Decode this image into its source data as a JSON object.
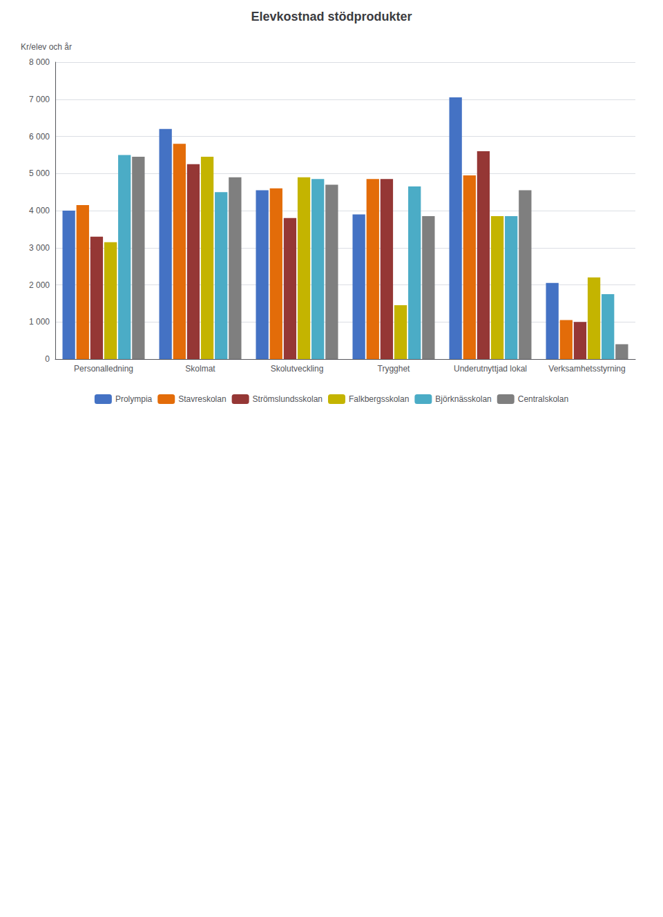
{
  "chart_data": {
    "type": "bar",
    "title": "Elevkostnad stödprodukter",
    "ylabel": "Kr/elev och år",
    "categories": [
      "Personalledning",
      "Skolmat",
      "Skolutveckling",
      "Trygghet",
      "Underutnyttjad lokal",
      "Verksamhetsstyrning"
    ],
    "series": [
      {
        "name": "Prolympia",
        "color": "#4472C4",
        "values": [
          4000,
          6200,
          4550,
          3900,
          7050,
          2050
        ]
      },
      {
        "name": "Stavreskolan",
        "color": "#E36C09",
        "values": [
          4150,
          5800,
          4600,
          4850,
          4950,
          1050
        ]
      },
      {
        "name": "Strömslundsskolan",
        "color": "#953735",
        "values": [
          3300,
          5250,
          3800,
          4850,
          5600,
          1000
        ]
      },
      {
        "name": "Falkbergsskolan",
        "color": "#C4B400",
        "values": [
          3150,
          5450,
          4900,
          1450,
          3850,
          2200
        ]
      },
      {
        "name": "Björknässkolan",
        "color": "#4BACC6",
        "values": [
          5500,
          4500,
          4850,
          4650,
          3850,
          1750
        ]
      },
      {
        "name": "Centralskolan",
        "color": "#7F7F7F",
        "values": [
          5450,
          4900,
          4700,
          3850,
          4550,
          400
        ]
      }
    ],
    "ylim": [
      0,
      8000
    ],
    "yticks": [
      0,
      {
        "value": 1000,
        "label": "1 000"
      },
      {
        "value": 2000,
        "label": "2 000"
      },
      {
        "value": 3000,
        "label": "3 000"
      },
      {
        "value": 4000,
        "label": "4 000"
      },
      {
        "value": 5000,
        "label": "5 000"
      },
      {
        "value": 6000,
        "label": "6 000"
      },
      {
        "value": 7000,
        "label": "7 000"
      },
      {
        "value": 8000,
        "label": "8 000"
      }
    ],
    "grid": true,
    "legend": "bottom"
  }
}
